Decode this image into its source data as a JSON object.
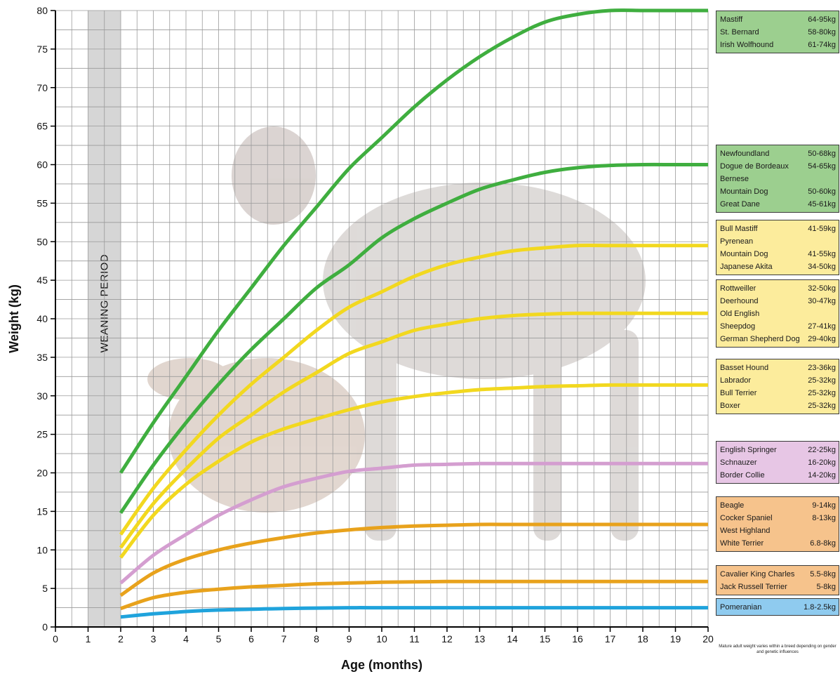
{
  "chart_data": {
    "type": "line",
    "xlabel": "Age (months)",
    "ylabel": "Weight (kg)",
    "xlim": [
      0,
      20
    ],
    "ylim": [
      0,
      80
    ],
    "x_ticks": [
      0,
      1,
      2,
      3,
      4,
      5,
      6,
      7,
      8,
      9,
      10,
      11,
      12,
      13,
      14,
      15,
      16,
      17,
      18,
      19,
      20
    ],
    "y_ticks": [
      0,
      5,
      10,
      15,
      20,
      25,
      30,
      35,
      40,
      45,
      50,
      55,
      60,
      65,
      70,
      75,
      80
    ],
    "grid": true,
    "weaning_period": {
      "label": "WEANING PERIOD",
      "x_range": [
        1,
        2
      ],
      "color": "#d6d6d6"
    },
    "series": [
      {
        "color": "#3fae3f",
        "x": [
          2,
          3,
          4,
          5,
          6,
          7,
          8,
          9,
          10,
          11,
          12,
          13,
          14,
          15,
          16,
          17,
          18,
          19,
          20
        ],
        "y": [
          20,
          26.5,
          32.5,
          38.5,
          44,
          49.5,
          54.5,
          59.5,
          63.5,
          67.5,
          71,
          74,
          76.5,
          78.5,
          79.5,
          80,
          80,
          80,
          80
        ]
      },
      {
        "color": "#3fae3f",
        "x": [
          2,
          3,
          4,
          5,
          6,
          7,
          8,
          9,
          10,
          11,
          12,
          13,
          14,
          15,
          16,
          17,
          18,
          19,
          20
        ],
        "y": [
          14.8,
          21,
          26.5,
          31.5,
          36,
          40,
          44,
          47,
          50.5,
          53,
          55,
          56.8,
          58,
          59,
          59.6,
          59.9,
          60,
          60,
          60
        ]
      },
      {
        "color": "#f2d81f",
        "x": [
          2,
          3,
          4,
          5,
          6,
          7,
          8,
          9,
          10,
          11,
          12,
          13,
          14,
          15,
          16,
          17,
          18,
          19,
          20
        ],
        "y": [
          12,
          18,
          23,
          27.5,
          31.5,
          35,
          38.5,
          41.5,
          43.5,
          45.5,
          47,
          48,
          48.8,
          49.2,
          49.5,
          49.5,
          49.5,
          49.5,
          49.5
        ]
      },
      {
        "color": "#f2d81f",
        "x": [
          2,
          3,
          4,
          5,
          6,
          7,
          8,
          9,
          10,
          11,
          12,
          13,
          14,
          15,
          16,
          17,
          18,
          19,
          20
        ],
        "y": [
          10.3,
          16,
          20.5,
          24.5,
          27.5,
          30.5,
          33,
          35.5,
          37,
          38.5,
          39.3,
          40,
          40.4,
          40.6,
          40.7,
          40.7,
          40.7,
          40.7,
          40.7
        ]
      },
      {
        "color": "#f2d81f",
        "x": [
          2,
          3,
          4,
          5,
          6,
          7,
          8,
          9,
          10,
          11,
          12,
          13,
          14,
          15,
          16,
          17,
          18,
          19,
          20
        ],
        "y": [
          9,
          14.5,
          18.5,
          21.5,
          24,
          25.7,
          27,
          28.2,
          29.2,
          29.9,
          30.4,
          30.8,
          31,
          31.2,
          31.3,
          31.4,
          31.4,
          31.4,
          31.4
        ]
      },
      {
        "color": "#d49ed0",
        "x": [
          2,
          3,
          4,
          5,
          6,
          7,
          8,
          9,
          10,
          11,
          12,
          13,
          14,
          15,
          16,
          17,
          18,
          19,
          20
        ],
        "y": [
          5.7,
          9.3,
          12,
          14.5,
          16.5,
          18.2,
          19.3,
          20.2,
          20.6,
          21,
          21.1,
          21.2,
          21.2,
          21.2,
          21.2,
          21.2,
          21.2,
          21.2,
          21.2
        ]
      },
      {
        "color": "#e8a21c",
        "x": [
          2,
          3,
          4,
          5,
          6,
          7,
          8,
          9,
          10,
          11,
          12,
          13,
          14,
          15,
          16,
          17,
          18,
          19,
          20
        ],
        "y": [
          4.1,
          7,
          8.8,
          10,
          10.9,
          11.6,
          12.2,
          12.6,
          12.9,
          13.1,
          13.2,
          13.3,
          13.3,
          13.3,
          13.3,
          13.3,
          13.3,
          13.3,
          13.3
        ]
      },
      {
        "color": "#e8a21c",
        "x": [
          2,
          3,
          4,
          5,
          6,
          7,
          8,
          9,
          10,
          11,
          12,
          13,
          14,
          15,
          16,
          17,
          18,
          19,
          20
        ],
        "y": [
          2.4,
          3.8,
          4.5,
          4.9,
          5.2,
          5.4,
          5.6,
          5.7,
          5.8,
          5.85,
          5.9,
          5.9,
          5.9,
          5.9,
          5.9,
          5.9,
          5.9,
          5.9,
          5.9
        ]
      },
      {
        "color": "#1fa3dc",
        "x": [
          2,
          3,
          4,
          5,
          6,
          7,
          8,
          9,
          10,
          11,
          12,
          13,
          14,
          15,
          16,
          17,
          18,
          19,
          20
        ],
        "y": [
          1.3,
          1.7,
          2,
          2.2,
          2.3,
          2.4,
          2.45,
          2.5,
          2.5,
          2.5,
          2.5,
          2.5,
          2.5,
          2.5,
          2.5,
          2.5,
          2.5,
          2.5,
          2.5
        ]
      }
    ],
    "breed_groups": [
      {
        "color": "#9ccf8f",
        "items": [
          {
            "name": "Mastiff",
            "weight": "64-95kg"
          },
          {
            "name": "St. Bernard",
            "weight": "58-80kg"
          },
          {
            "name": "Irish Wolfhound",
            "weight": "61-74kg"
          }
        ]
      },
      {
        "color": "#9ccf8f",
        "items": [
          {
            "name": "Newfoundland",
            "weight": "50-68kg"
          },
          {
            "name": "Dogue de Bordeaux",
            "weight": "54-65kg"
          },
          {
            "name": "Bernese",
            "weight": ""
          },
          {
            "name": "Mountain Dog",
            "weight": "50-60kg"
          },
          {
            "name": "Great Dane",
            "weight": "45-61kg"
          }
        ]
      },
      {
        "color": "#fcec9c",
        "items": [
          {
            "name": "Bull Mastiff",
            "weight": "41-59kg"
          },
          {
            "name": "Pyrenean",
            "weight": ""
          },
          {
            "name": "Mountain Dog",
            "weight": "41-55kg"
          },
          {
            "name": "Japanese Akita",
            "weight": "34-50kg"
          }
        ]
      },
      {
        "color": "#fcec9c",
        "items": [
          {
            "name": "Rottweiller",
            "weight": "32-50kg"
          },
          {
            "name": "Deerhound",
            "weight": "30-47kg"
          },
          {
            "name": "Old English",
            "weight": ""
          },
          {
            "name": "Sheepdog",
            "weight": "27-41kg"
          },
          {
            "name": "German Shepherd Dog",
            "weight": "29-40kg"
          }
        ]
      },
      {
        "color": "#fcec9c",
        "items": [
          {
            "name": "Basset Hound",
            "weight": "23-36kg"
          },
          {
            "name": "Labrador",
            "weight": "25-32kg"
          },
          {
            "name": "Bull Terrier",
            "weight": "25-32kg"
          },
          {
            "name": "Boxer",
            "weight": "25-32kg"
          }
        ]
      },
      {
        "color": "#e7c6e5",
        "items": [
          {
            "name": "English Springer",
            "weight": "22-25kg"
          },
          {
            "name": "Schnauzer",
            "weight": "16-20kg"
          },
          {
            "name": "Border Collie",
            "weight": "14-20kg"
          }
        ]
      },
      {
        "color": "#f6c38c",
        "items": [
          {
            "name": "Beagle",
            "weight": "9-14kg"
          },
          {
            "name": "Cocker Spaniel",
            "weight": "8-13kg"
          },
          {
            "name": "West Highland",
            "weight": ""
          },
          {
            "name": "White Terrier",
            "weight": "6.8-8kg"
          }
        ]
      },
      {
        "color": "#f6c38c",
        "items": [
          {
            "name": "Cavalier King Charles",
            "weight": "5.5-8kg"
          },
          {
            "name": "Jack Russell Terrier",
            "weight": "5-8kg"
          }
        ]
      },
      {
        "color": "#8fcbef",
        "items": [
          {
            "name": "Pomeranian",
            "weight": "1.8-2.5kg"
          }
        ]
      }
    ],
    "footnote": "Mature adult weight varies within a breed depending on gender and genetic influences"
  }
}
